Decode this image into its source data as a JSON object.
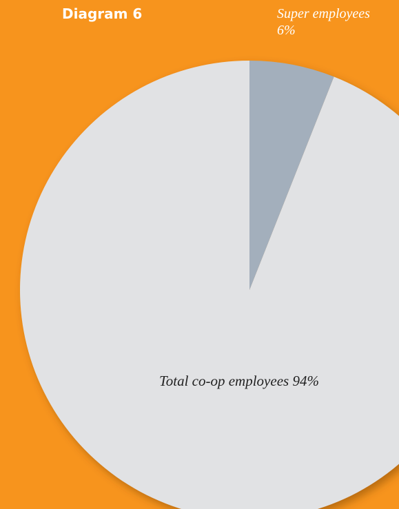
{
  "title": "Diagram 6",
  "colors": {
    "background": "#F7941D",
    "total_slice": "#E1E2E4",
    "super_slice": "#A3AFBC",
    "title_text": "#FFFFFF",
    "super_label_text": "#FFFFFF",
    "total_label_text": "#222222"
  },
  "chart_data": {
    "type": "pie",
    "title": "Diagram 6",
    "slices": [
      {
        "name": "Super employees",
        "value": 6,
        "label_name": "Super employees",
        "label_value": "6%"
      },
      {
        "name": "Total co-op employees",
        "value": 94,
        "label": "Total co-op employees 94%"
      }
    ],
    "start_angle": "12 o'clock",
    "direction": "clockwise",
    "legend": "none",
    "labels": "on-slice and outside"
  }
}
